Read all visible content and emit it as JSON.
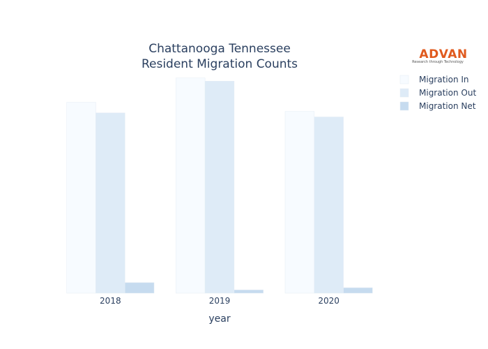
{
  "chart_data": {
    "type": "bar",
    "title_lines": [
      "Chattanooga Tennessee",
      "Resident Migration Counts"
    ],
    "xlabel": "year",
    "ylabel": "",
    "categories": [
      "2018",
      "2019",
      "2020"
    ],
    "series": [
      {
        "name": "Migration In",
        "values": [
          9400,
          10600,
          8950
        ],
        "color": "#f7fbff"
      },
      {
        "name": "Migration Out",
        "values": [
          8880,
          10440,
          8680
        ],
        "color": "#deebf7"
      },
      {
        "name": "Migration Net",
        "values": [
          520,
          160,
          270
        ],
        "color": "#c6dbef"
      }
    ],
    "ylim": [
      0,
      11000
    ],
    "grid": false,
    "y_ticks_visible": false,
    "legend_position": "top-right"
  },
  "logo": {
    "name": "ADVAN",
    "tagline": "Research through Technology",
    "color": "#e05a1e"
  }
}
